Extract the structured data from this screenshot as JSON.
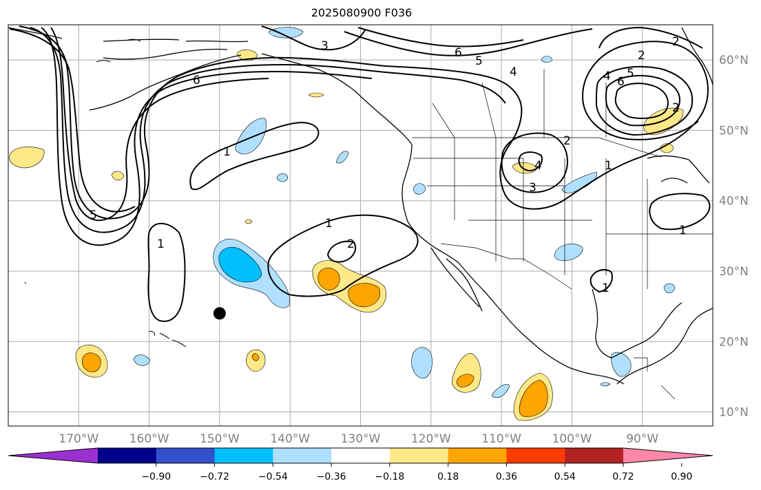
{
  "title": "2025080900 F036",
  "lon_ticks": [
    {
      "lon": -170,
      "label": "170°W"
    },
    {
      "lon": -160,
      "label": "160°W"
    },
    {
      "lon": -150,
      "label": "150°W"
    },
    {
      "lon": -140,
      "label": "140°W"
    },
    {
      "lon": -130,
      "label": "130°W"
    },
    {
      "lon": -120,
      "label": "120°W"
    },
    {
      "lon": -110,
      "label": "110°W"
    },
    {
      "lon": -100,
      "label": "100°W"
    },
    {
      "lon": -90,
      "label": "90°W"
    }
  ],
  "lat_ticks": [
    {
      "lat": 60,
      "label": "60°N"
    },
    {
      "lat": 50,
      "label": "50°N"
    },
    {
      "lat": 40,
      "label": "40°N"
    },
    {
      "lat": 30,
      "label": "30°N"
    },
    {
      "lat": 20,
      "label": "20°N"
    },
    {
      "lat": 10,
      "label": "10°N"
    }
  ],
  "extent": {
    "lon_min": -180,
    "lon_max": -80,
    "lat_min": 8,
    "lat_max": 65
  },
  "colorbar": {
    "ticks": [
      "−0.90",
      "−0.72",
      "−0.54",
      "−0.36",
      "−0.18",
      "0.18",
      "0.36",
      "0.54",
      "0.72",
      "0.90"
    ],
    "colors": [
      "#9b30d0",
      "#000088",
      "#3050cc",
      "#00bfff",
      "#b0e0ff",
      "#ffffff",
      "#ffe888",
      "#ffa500",
      "#ff3c00",
      "#b22222",
      "#ff88aa"
    ]
  },
  "contour_labels": [
    "1",
    "2",
    "3",
    "4",
    "5",
    "6"
  ],
  "marker": {
    "lon": -150,
    "lat": 24
  }
}
